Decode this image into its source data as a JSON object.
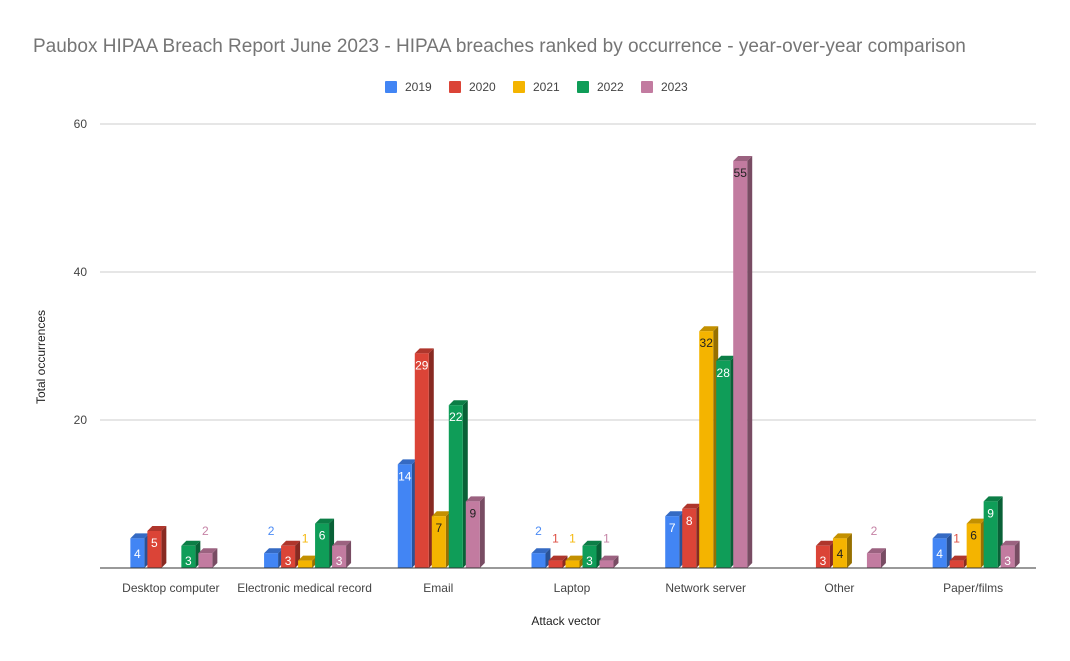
{
  "chart_data": {
    "type": "bar",
    "title": "Paubox HIPAA Breach Report June 2023 - HIPAA breaches ranked by occurrence - year-over-year comparison",
    "xlabel": "Attack vector",
    "ylabel": "Total occurrences",
    "ylim": [
      0,
      60
    ],
    "yticks": [
      0,
      20,
      40,
      60
    ],
    "ytick_labels": [
      "",
      "20",
      "40",
      "60"
    ],
    "grid": true,
    "legend_position": "top",
    "style": "3d-columns",
    "categories": [
      "Desktop computer",
      "Electronic medical record",
      "Email",
      "Laptop",
      "Network server",
      "Other",
      "Paper/films"
    ],
    "series": [
      {
        "name": "2019",
        "color": "#4285f4",
        "values": [
          4,
          2,
          14,
          2,
          7,
          null,
          4
        ]
      },
      {
        "name": "2020",
        "color": "#db4437",
        "values": [
          5,
          3,
          29,
          1,
          8,
          3,
          1
        ]
      },
      {
        "name": "2021",
        "color": "#f4b400",
        "values": [
          null,
          1,
          7,
          1,
          32,
          4,
          6
        ]
      },
      {
        "name": "2022",
        "color": "#0f9d58",
        "values": [
          3,
          6,
          22,
          3,
          28,
          null,
          9
        ]
      },
      {
        "name": "2023",
        "color": "#c27ba0",
        "values": [
          2,
          3,
          9,
          1,
          55,
          2,
          3
        ]
      }
    ]
  }
}
